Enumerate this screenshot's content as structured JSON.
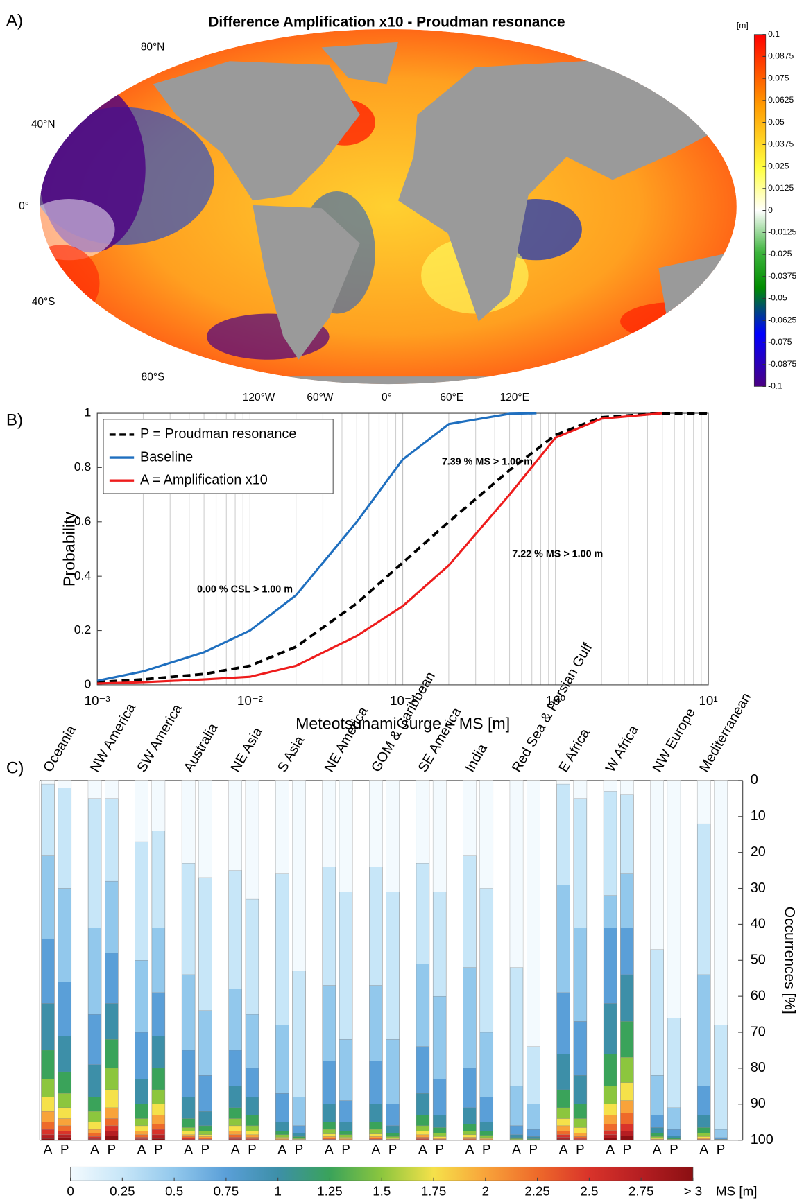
{
  "chart_data": [
    {
      "type": "map",
      "panel_label": "A)",
      "title": "Difference Amplification x10 - Proudman resonance",
      "lat_labels": [
        "80°N",
        "40°N",
        "0°",
        "40°S",
        "80°S"
      ],
      "lon_labels": [
        "120°W",
        "60°W",
        "0°",
        "60°E",
        "120°E"
      ],
      "colorbar_unit": "[m]",
      "clim": [
        -0.1,
        0.1
      ],
      "colorbar_ticks": [
        0.1,
        0.0875,
        0.075,
        0.0625,
        0.05,
        0.0375,
        0.025,
        0.0125,
        0,
        -0.0125,
        -0.025,
        -0.0375,
        -0.05,
        -0.0625,
        -0.075,
        -0.0875,
        -0.1
      ]
    },
    {
      "type": "line",
      "panel_label": "B)",
      "xlabel": "Meteotsunami surge – MS [m]",
      "ylabel": "Probability",
      "xscale": "log",
      "xlim": [
        0.001,
        10
      ],
      "ylim": [
        0,
        1
      ],
      "xticks": [
        {
          "value": 0.001,
          "label": "10⁻³"
        },
        {
          "value": 0.01,
          "label": "10⁻²"
        },
        {
          "value": 0.1,
          "label": "10⁻¹"
        },
        {
          "value": 1,
          "label": "10⁰"
        },
        {
          "value": 10,
          "label": "10¹"
        }
      ],
      "yticks": [
        0,
        0.2,
        0.4,
        0.6,
        0.8,
        1
      ],
      "grid": true,
      "legend": "upper left",
      "series": [
        {
          "name": "P = Proudman resonance",
          "color": "#000000",
          "dash": true,
          "x": [
            0.001,
            0.002,
            0.005,
            0.01,
            0.02,
            0.05,
            0.1,
            0.2,
            0.5,
            1,
            2,
            5,
            10
          ],
          "values": [
            0.01,
            0.02,
            0.04,
            0.07,
            0.14,
            0.3,
            0.45,
            0.6,
            0.79,
            0.92,
            0.985,
            1,
            1
          ]
        },
        {
          "name": "Baseline",
          "color": "#1f6fbf",
          "dash": false,
          "x": [
            0.001,
            0.002,
            0.005,
            0.01,
            0.02,
            0.05,
            0.1,
            0.2,
            0.5,
            0.75
          ],
          "values": [
            0.015,
            0.05,
            0.12,
            0.2,
            0.33,
            0.6,
            0.83,
            0.96,
            0.998,
            1
          ]
        },
        {
          "name": "A = Amplification x10",
          "color": "#ee1c1c",
          "dash": false,
          "x": [
            0.001,
            0.002,
            0.005,
            0.01,
            0.02,
            0.05,
            0.1,
            0.2,
            0.5,
            1,
            2,
            5
          ],
          "values": [
            0.005,
            0.01,
            0.02,
            0.03,
            0.07,
            0.18,
            0.29,
            0.44,
            0.7,
            0.91,
            0.98,
            1
          ]
        }
      ],
      "annotations": [
        {
          "text": "0.00 % CSL > 1.00 m",
          "color": "#1f6fbf",
          "x": 0.0045,
          "y": 0.35
        },
        {
          "text": "7.39 %  MS > 1.00 m",
          "color": "#000000",
          "x": 0.18,
          "y": 0.82
        },
        {
          "text": "7.22 %  MS > 1.00 m",
          "color": "#ee1c1c",
          "x": 0.52,
          "y": 0.48
        }
      ]
    },
    {
      "type": "stacked-bar",
      "panel_label": "C)",
      "ylabel": "Occurrences  [%]",
      "ylim": [
        0,
        100
      ],
      "y_reversed": true,
      "yticks": [
        0,
        10,
        20,
        30,
        40,
        50,
        60,
        70,
        80,
        90,
        100
      ],
      "categories": [
        "Oceania",
        "NW America",
        "SW America",
        "Australia",
        "NE Asia",
        "S Asia",
        "NE America",
        "GOM & Caribbean",
        "SE America",
        "India",
        "Red Sea & Persian Gulf",
        "E Africa",
        "W Africa",
        "NW Europe",
        "Mediterranean"
      ],
      "class_colors": [
        "#f3fafe",
        "#c7e6f8",
        "#92c8ec",
        "#5a9fd8",
        "#3d8fa8",
        "#3aa35a",
        "#8cc63e",
        "#f5e14a",
        "#f8a33a",
        "#ee6a2a",
        "#d9332a",
        "#b51e22",
        "#8b0f12"
      ],
      "colorbar_lim": [
        0,
        3
      ],
      "colorbar_ticks": [
        0,
        0.25,
        0.5,
        0.75,
        1,
        1.25,
        1.5,
        1.75,
        2,
        2.25,
        2.5,
        2.75,
        {
          "value": 3,
          "label": "> 3"
        }
      ],
      "colorbar_unit": "MS [m]",
      "series": [
        {
          "name": "A",
          "values": [
            [
              1,
              20,
              23,
              18,
              13,
              8,
              5,
              4,
              3,
              2,
              1.5,
              1,
              0.5
            ],
            [
              5,
              36,
              24,
              14,
              9,
              4,
              3,
              2,
              1,
              1,
              0.5,
              0.3,
              0.2
            ],
            [
              17,
              33,
              20,
              13,
              7,
              4,
              2,
              1.5,
              1,
              0.7,
              0.4,
              0.2,
              0.2
            ],
            [
              23,
              31,
              21,
              13,
              6,
              2.5,
              1,
              1,
              0.5,
              0.4,
              0.3,
              0.2,
              0.1
            ],
            [
              25,
              33,
              17,
              10,
              6,
              3,
              2,
              1.5,
              1,
              0.7,
              0.4,
              0.25,
              0.15
            ],
            [
              26,
              42,
              19,
              8,
              2.5,
              1,
              0.7,
              0.4,
              0.2,
              0.1,
              0.05,
              0.03,
              0.02
            ],
            [
              24,
              33,
              21,
              12,
              5,
              2,
              1.3,
              0.7,
              0.4,
              0.3,
              0.15,
              0.1,
              0.05
            ],
            [
              24,
              33,
              21,
              12,
              5,
              2,
              1.3,
              0.7,
              0.4,
              0.3,
              0.15,
              0.1,
              0.05
            ],
            [
              23,
              28,
              23,
              13,
              6,
              3,
              1.5,
              1,
              0.7,
              0.4,
              0.2,
              0.13,
              0.07
            ],
            [
              21,
              31,
              28,
              11,
              4.5,
              2,
              1,
              0.7,
              0.4,
              0.2,
              0.1,
              0.06,
              0.04
            ],
            [
              52,
              33,
              11,
              2.5,
              0.8,
              0.3,
              0.2,
              0.1,
              0.05,
              0.02,
              0.01,
              0.01,
              0.01
            ],
            [
              1,
              28,
              30,
              17,
              10,
              5,
              3,
              2,
              1.5,
              1,
              0.7,
              0.5,
              0.3
            ],
            [
              3,
              29,
              9,
              21,
              14,
              9,
              5,
              3,
              2.5,
              1.8,
              1.2,
              0.9,
              0.6
            ],
            [
              47,
              35,
              11,
              3.5,
              1.5,
              1,
              0.5,
              0.25,
              0.13,
              0.06,
              0.03,
              0.02,
              0.01
            ],
            [
              12,
              42,
              31,
              8,
              3.5,
              1.5,
              1,
              0.5,
              0.25,
              0.13,
              0.06,
              0.04,
              0.02
            ]
          ]
        },
        {
          "name": "P",
          "values": [
            [
              2,
              28,
              26,
              15,
              10,
              6,
              4,
              3,
              2,
              1.5,
              1,
              0.8,
              0.7
            ],
            [
              5,
              23,
              20,
              14,
              10,
              8,
              6,
              5,
              3,
              2,
              1.5,
              1.3,
              1.2
            ],
            [
              14,
              27,
              18,
              12,
              9,
              6,
              4,
              3,
              2.5,
              1.5,
              1.5,
              1,
              0.5
            ],
            [
              27,
              37,
              18,
              10,
              4,
              1.5,
              1,
              0.5,
              0.4,
              0.3,
              0.15,
              0.1,
              0.05
            ],
            [
              33,
              32,
              15,
              8,
              5,
              3,
              1.5,
              1,
              0.7,
              0.4,
              0.2,
              0.15,
              0.05
            ],
            [
              53,
              35,
              8,
              2,
              1,
              0.5,
              0.2,
              0.15,
              0.07,
              0.04,
              0.02,
              0.01,
              0.01
            ],
            [
              31,
              41,
              17,
              6,
              2.5,
              1,
              0.7,
              0.4,
              0.2,
              0.1,
              0.05,
              0.03,
              0.02
            ],
            [
              31,
              41,
              18,
              6,
              2,
              1,
              0.5,
              0.2,
              0.15,
              0.07,
              0.04,
              0.03,
              0.01
            ],
            [
              31,
              29,
              23,
              10,
              3.5,
              1.5,
              1,
              0.5,
              0.25,
              0.13,
              0.06,
              0.04,
              0.02
            ],
            [
              30,
              40,
              18,
              7,
              2.5,
              1.2,
              0.6,
              0.3,
              0.2,
              0.1,
              0.05,
              0.03,
              0.02
            ],
            [
              74,
              16,
              7,
              2,
              0.6,
              0.2,
              0.1,
              0.05,
              0.02,
              0.01,
              0.01,
              0.005,
              0.005
            ],
            [
              5,
              36,
              26,
              15,
              8,
              4,
              2.5,
              1.5,
              1,
              0.5,
              0.3,
              0.12,
              0.08
            ],
            [
              4,
              22,
              15,
              13,
              13,
              10,
              7,
              5,
              3.5,
              3,
              2,
              1.3,
              1.2
            ],
            [
              66,
              25,
              6,
              1.8,
              0.6,
              0.3,
              0.15,
              0.07,
              0.04,
              0.02,
              0.01,
              0.005,
              0.005
            ],
            [
              68,
              29,
              2.3,
              0.4,
              0.1,
              0.05,
              0.05,
              0.03,
              0.03,
              0.02,
              0.01,
              0.005,
              0.005
            ]
          ]
        }
      ]
    }
  ]
}
